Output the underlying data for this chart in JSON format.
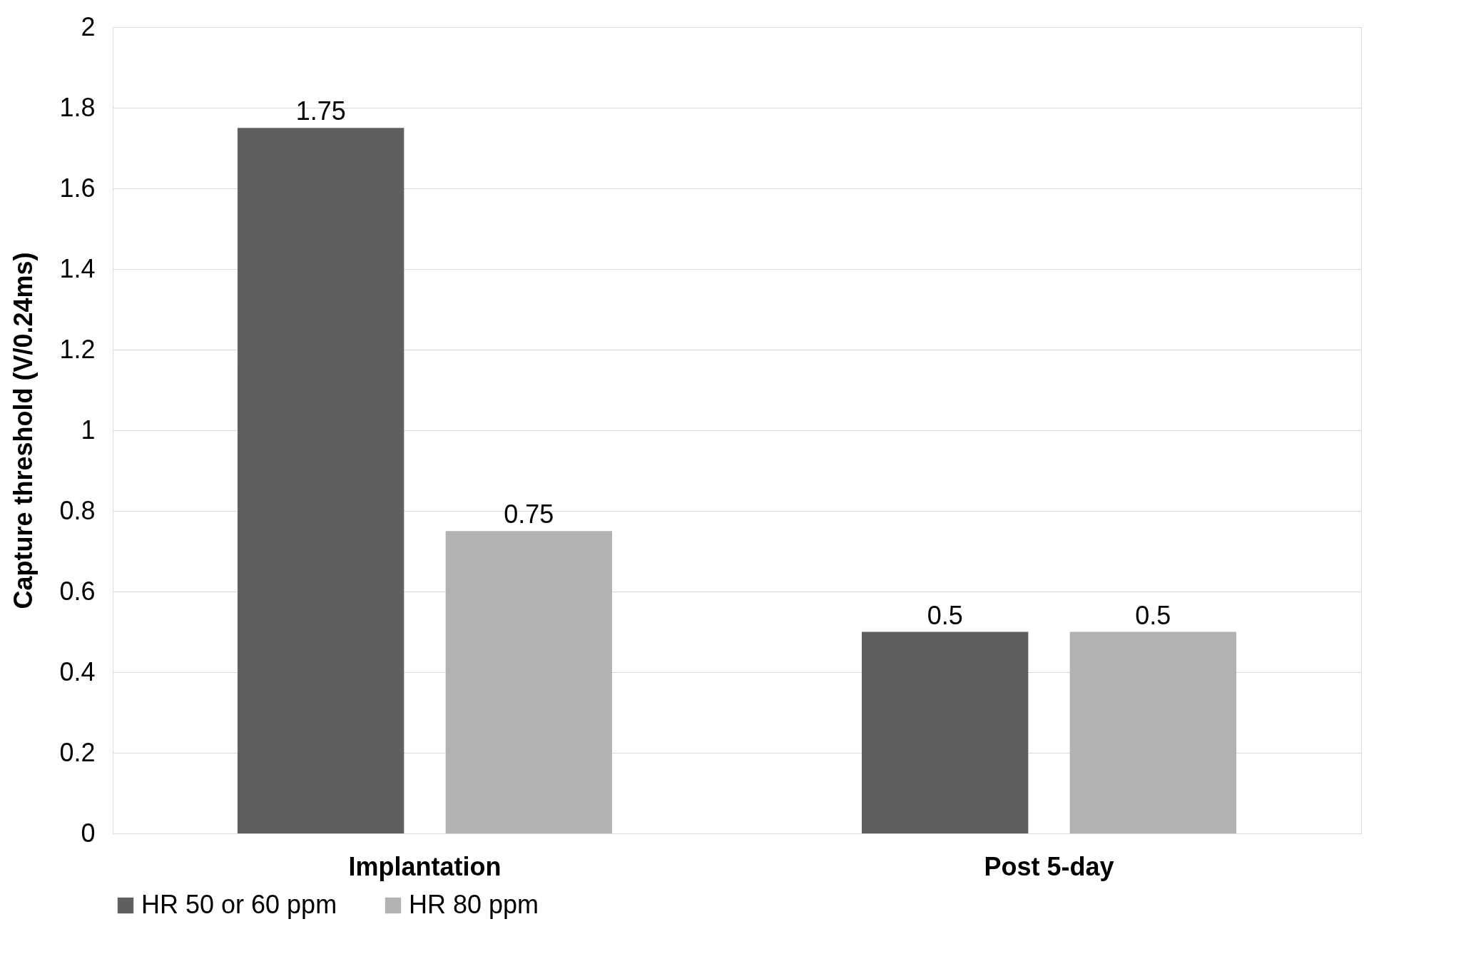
{
  "chart_data": {
    "type": "bar",
    "ylabel": "Capture threshold (V/0.24ms)",
    "categories": [
      "Implantation",
      "Post 5-day"
    ],
    "series": [
      {
        "name": "HR 50 or 60 ppm",
        "color": "#5f5f5f",
        "values": [
          1.75,
          0.5
        ]
      },
      {
        "name": "HR 80 ppm",
        "color": "#b2b2b2",
        "values": [
          0.75,
          0.5
        ]
      }
    ],
    "ylim": [
      0,
      2
    ],
    "yticks": [
      0,
      0.2,
      0.4,
      0.6,
      0.8,
      1,
      1.2,
      1.4,
      1.6,
      1.8,
      2
    ],
    "grid": "y",
    "legend": "bottom",
    "data_labels": true
  }
}
